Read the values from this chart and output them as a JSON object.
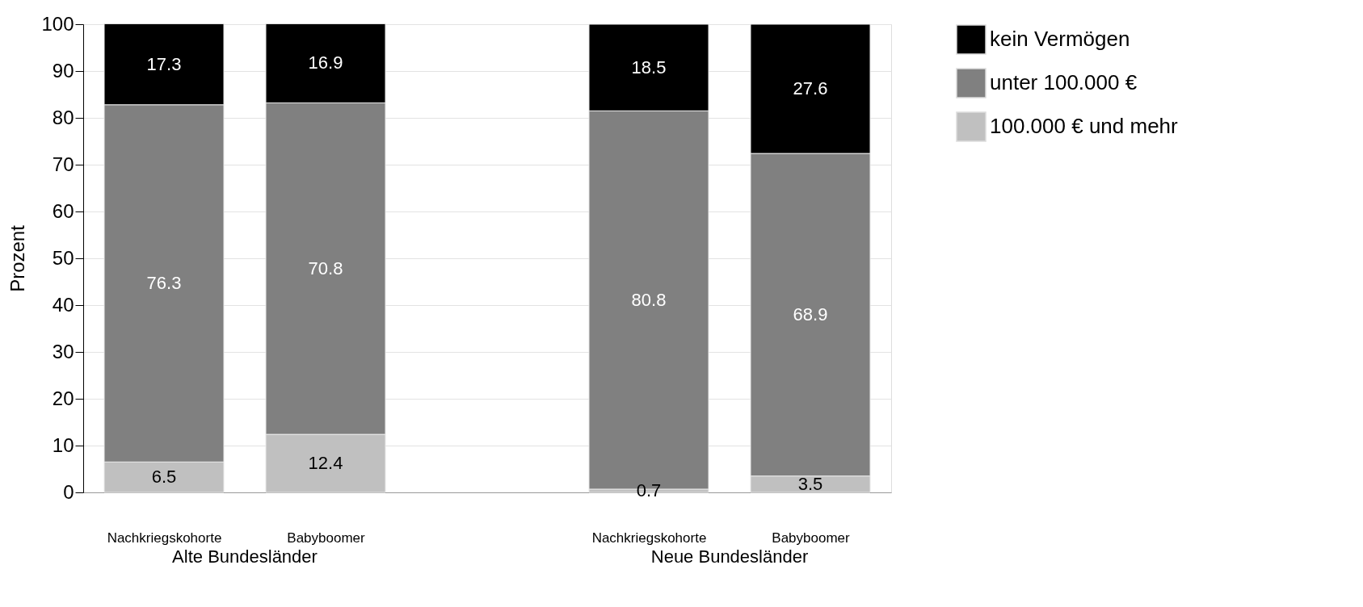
{
  "chart_data": {
    "type": "bar",
    "stacked": true,
    "ylabel": "Prozent",
    "categories": [
      "Nachkriegskohorte",
      "Babyboomer",
      null,
      "Nachkriegskohorte",
      "Babyboomer"
    ],
    "series": [
      {
        "name": "100.000 € und mehr",
        "color": "#c0c0c0",
        "values": [
          6.5,
          12.4,
          null,
          0.7,
          3.5
        ]
      },
      {
        "name": "unter 100.000 €",
        "color": "#808080",
        "values": [
          76.3,
          70.8,
          null,
          80.8,
          68.9
        ]
      },
      {
        "name": "kein Vermögen",
        "color": "#000000",
        "values": [
          17.3,
          16.9,
          null,
          18.5,
          27.6
        ]
      }
    ],
    "ylim": [
      0,
      100
    ],
    "yticks": [
      0,
      10,
      20,
      30,
      40,
      50,
      60,
      70,
      80,
      90,
      100
    ],
    "grid": "y",
    "legend": "right",
    "data_labels": true,
    "annotations": [
      "Alte Bundesländer",
      "Neue Bundesländer"
    ]
  }
}
